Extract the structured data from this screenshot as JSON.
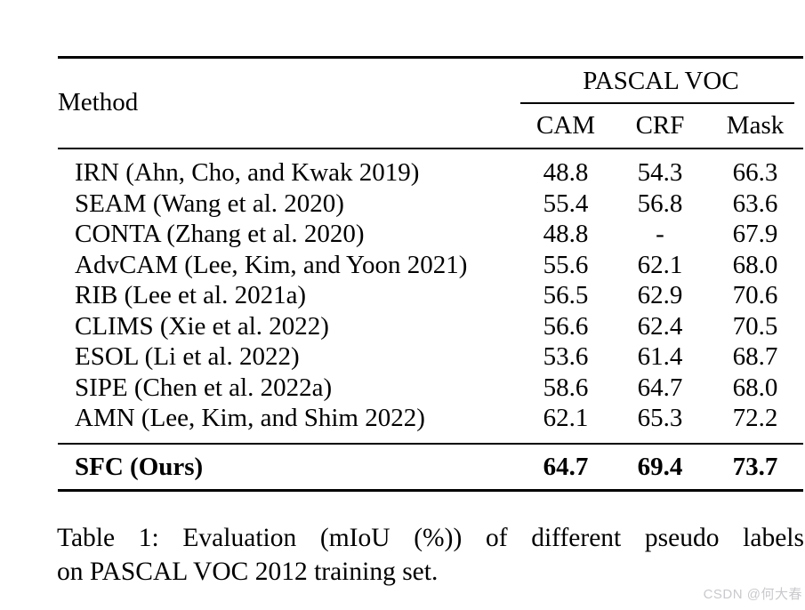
{
  "table": {
    "header": {
      "method": "Method",
      "group": "PASCAL VOC",
      "columns": [
        "CAM",
        "CRF",
        "Mask"
      ]
    },
    "rows": [
      {
        "method": "IRN (Ahn, Cho, and Kwak 2019)",
        "cam": "48.8",
        "crf": "54.3",
        "mask": "66.3"
      },
      {
        "method": "SEAM (Wang et al. 2020)",
        "cam": "55.4",
        "crf": "56.8",
        "mask": "63.6"
      },
      {
        "method": "CONTA (Zhang et al. 2020)",
        "cam": "48.8",
        "crf": "-",
        "mask": "67.9"
      },
      {
        "method": "AdvCAM (Lee, Kim, and Yoon 2021)",
        "cam": "55.6",
        "crf": "62.1",
        "mask": "68.0"
      },
      {
        "method": "RIB (Lee et al. 2021a)",
        "cam": "56.5",
        "crf": "62.9",
        "mask": "70.6"
      },
      {
        "method": "CLIMS (Xie et al. 2022)",
        "cam": "56.6",
        "crf": "62.4",
        "mask": "70.5"
      },
      {
        "method": "ESOL (Li et al. 2022)",
        "cam": "53.6",
        "crf": "61.4",
        "mask": "68.7"
      },
      {
        "method": "SIPE (Chen et al. 2022a)",
        "cam": "58.6",
        "crf": "64.7",
        "mask": "68.0"
      },
      {
        "method": "AMN (Lee, Kim, and Shim 2022)",
        "cam": "62.1",
        "crf": "65.3",
        "mask": "72.2"
      }
    ],
    "highlight_row": {
      "method": "SFC (Ours)",
      "cam": "64.7",
      "crf": "69.4",
      "mask": "73.7"
    }
  },
  "caption": {
    "line1": "Table 1: Evaluation (mIoU (%)) of different pseudo labels",
    "line2": "on PASCAL VOC 2012 training set.",
    "full": "Table 1: Evaluation (mIoU (%)) of different pseudo labels on PASCAL VOC 2012 training set."
  },
  "watermark": "CSDN @何大春",
  "colors": {
    "background": "#ffffff",
    "text": "#000000",
    "rule": "#000000",
    "watermark": "#c9c9cd"
  }
}
